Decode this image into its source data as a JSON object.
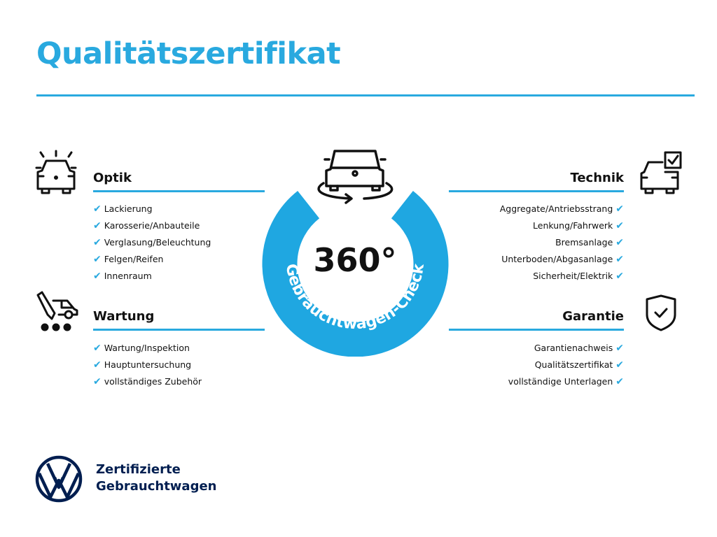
{
  "title": "Qualitätszertifikat",
  "center": {
    "number": "360°",
    "ring_text": "Gebrauchtwagen-Check",
    "icon": "car-rotate-icon"
  },
  "colors": {
    "accent": "#29a9df",
    "ring": "#1fa7e1",
    "brand": "#001e50"
  },
  "sections": {
    "optik": {
      "heading": "Optik",
      "icon": "car-lights-icon",
      "items": [
        "Lackierung",
        "Karosserie/Anbauteile",
        "Verglasung/Beleuchtung",
        "Felgen/Reifen",
        "Innenraum"
      ]
    },
    "wartung": {
      "heading": "Wartung",
      "icon": "service-icon",
      "items": [
        "Wartung/Inspektion",
        "Hauptuntersuchung",
        "vollständiges Zubehör"
      ]
    },
    "technik": {
      "heading": "Technik",
      "icon": "car-checklist-icon",
      "items": [
        "Aggregate/Antriebsstrang",
        "Lenkung/Fahrwerk",
        "Bremsanlage",
        "Unterboden/Abgasanlage",
        "Sicherheit/Elektrik"
      ]
    },
    "garantie": {
      "heading": "Garantie",
      "icon": "shield-check-icon",
      "items": [
        "Garantienachweis",
        "Qualitätszertifikat",
        "vollständige Unterlagen"
      ]
    }
  },
  "check_mark": "✔",
  "brand": {
    "line1": "Zertifizierte",
    "line2": "Gebrauchtwagen",
    "logo": "vw-logo"
  }
}
